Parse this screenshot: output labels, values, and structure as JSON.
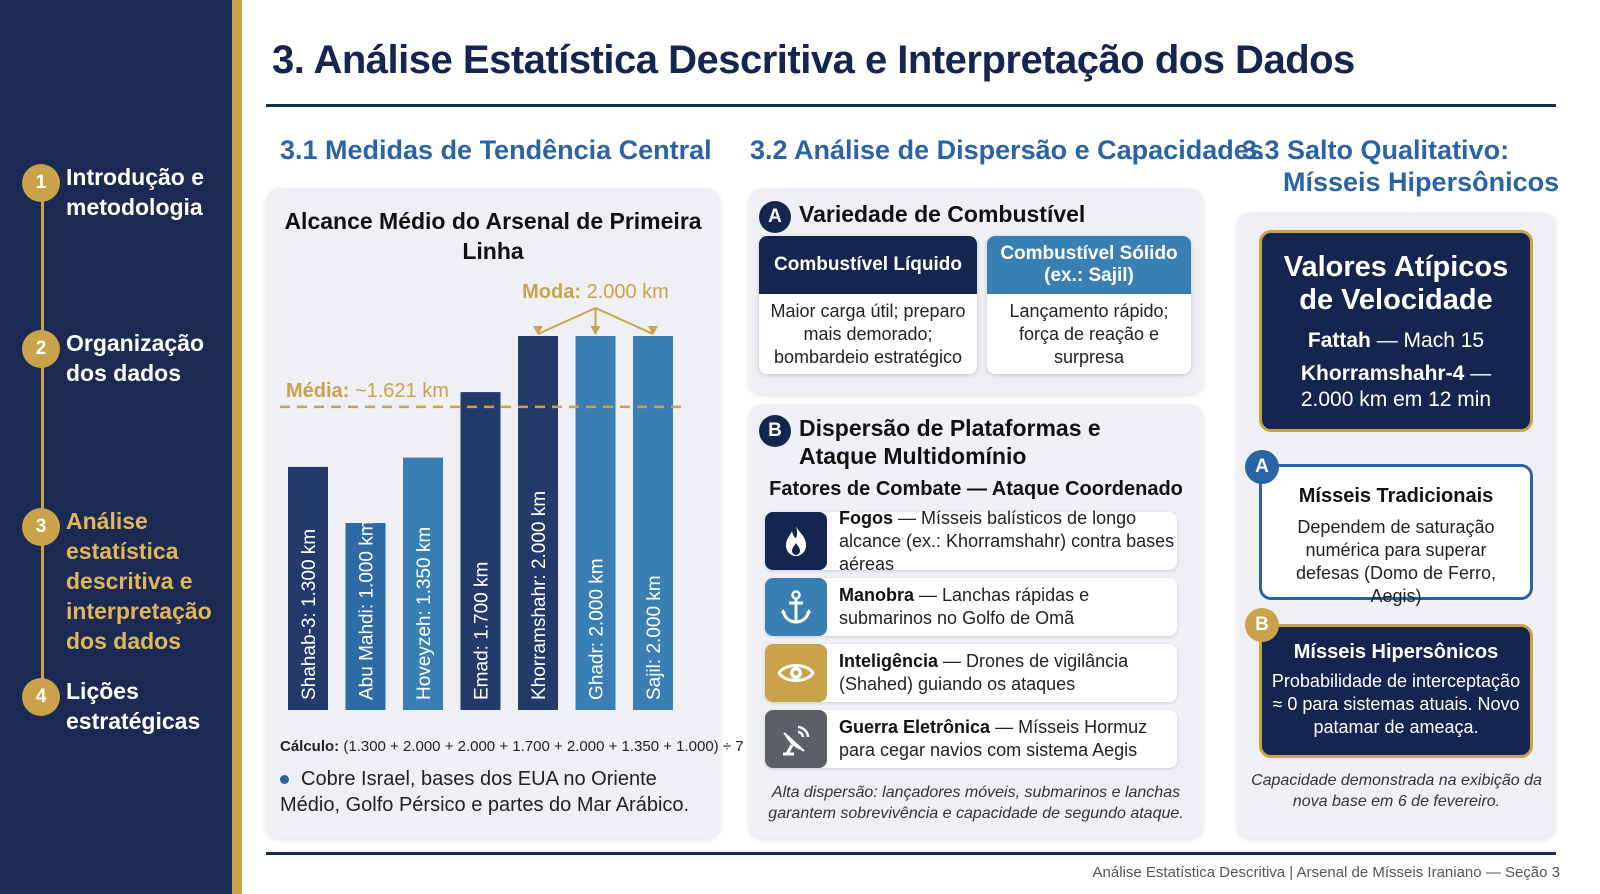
{
  "title": "3. Análise Estatística Descritiva e Interpretação dos Dados",
  "footer": "Análise Estatística Descritiva | Arsenal de Mísseis Iraniano — Seção 3",
  "sidebar": {
    "steps": [
      {
        "num": "1",
        "label": "Introdução e metodologia"
      },
      {
        "num": "2",
        "label": "Organização dos dados"
      },
      {
        "num": "3",
        "label": "Análise estatística descritiva e interpretação dos dados"
      },
      {
        "num": "4",
        "label": "Lições estratégicas"
      }
    ]
  },
  "section1": {
    "title": "3.1 Medidas de Tendência Central",
    "calc_label": "Cálculo:",
    "calc_expr": "(1.300 + 2.000 + 2.000 + 1.700 + 2.000 + 1.350 + 1.000) ÷ 7",
    "bullet": "Cobre Israel, bases dos EUA no Oriente Médio, Golfo Pérsico e partes do Mar Arábico."
  },
  "chart_data": {
    "type": "bar",
    "title": "Alcance Médio do Arsenal de Primeira Linha",
    "categories": [
      "Shahab-3",
      "Abu Mahdi",
      "Hoveyzeh",
      "Emad",
      "Khorramshahr",
      "Ghadr",
      "Sajil"
    ],
    "values": [
      1300,
      1000,
      1350,
      1700,
      2000,
      2000,
      2000
    ],
    "bar_labels": [
      "Shahab-3: 1.300 km",
      "Abu Mahdi: 1.000 km",
      "Hoveyzeh: 1.350 km",
      "Emad: 1.700 km",
      "Khorramshahr: 2.000 km",
      "Ghadr: 2.000 km",
      "Sajil: 2.000 km"
    ],
    "bar_colors": [
      "#243a6b",
      "#2e6aa3",
      "#3a7fb4",
      "#243a6b",
      "#243a6b",
      "#3a7fb4",
      "#3a7fb4"
    ],
    "mean": 1621,
    "mean_label": "Média:",
    "mean_value": "~1.621 km",
    "mode": 2000,
    "mode_label": "Moda:",
    "mode_value": "2.000 km",
    "ylim": [
      0,
      2000
    ]
  },
  "section2": {
    "title": "3.2 Análise de Dispersão e Capacidades",
    "a_badge": "A",
    "a_title": "Variedade de Combustível",
    "liquid_head": "Combustível Líquido",
    "liquid_body": "Maior carga útil; preparo mais demorado; bombardeio estratégico",
    "solid_head": "Combustível Sólido (ex.: Sajil)",
    "solid_body": "Lançamento rápido; força de reação e surpresa",
    "b_badge": "B",
    "b_title": "Dispersão de Plataformas e Ataque Multidomínio",
    "b_subtitle": "Fatores de Combate — Ataque Coordenado",
    "factors": [
      {
        "name": "Fogos",
        "desc": "— Mísseis balísticos de longo alcance (ex.: Khorramshahr) contra bases aéreas",
        "icon": "flame-icon"
      },
      {
        "name": "Manobra",
        "desc": "— Lanchas rápidas e submarinos no Golfo de Omã",
        "icon": "anchor-icon"
      },
      {
        "name": "Inteligência",
        "desc": "— Drones de vigilância (Shahed) guiando os ataques",
        "icon": "eye-icon"
      },
      {
        "name": "Guerra Eletrônica",
        "desc": "— Mísseis Hormuz para cegar navios com sistema Aegis",
        "icon": "satellite-dish-icon"
      }
    ],
    "note": "Alta dispersão: lançadores móveis, submarinos e lanchas garantem sobrevivência e capacidade de segundo ataque."
  },
  "section3": {
    "title_line1": "3.3 Salto Qualitativo:",
    "title_line2": "Mísseis Hipersônicos",
    "atypical_title": "Valores Atípicos de Velocidade",
    "fattah_name": "Fattah",
    "fattah_value": "— Mach 15",
    "khorram_name": "Khorramshahr-4",
    "khorram_value_a": "—",
    "khorram_value_b": "2.000 km em 12 min",
    "trad_badge": "A",
    "trad_title": "Mísseis Tradicionais",
    "trad_body": "Dependem de saturação numérica para superar defesas (Domo de Ferro, Aegis)",
    "hyper_badge": "B",
    "hyper_title": "Mísseis Hipersônicos",
    "hyper_body": "Probabilidade de interceptação ≈ 0 para sistemas atuais. Novo patamar de ameaça.",
    "note": "Capacidade demonstrada na exibição da nova base em 6 de fevereiro."
  },
  "colors": {
    "navy": "#14254f",
    "sidebar": "#1a2a52",
    "gold": "#c9a24a",
    "accent_blue": "#2a64a4",
    "light_blue": "#3a7fb4"
  }
}
